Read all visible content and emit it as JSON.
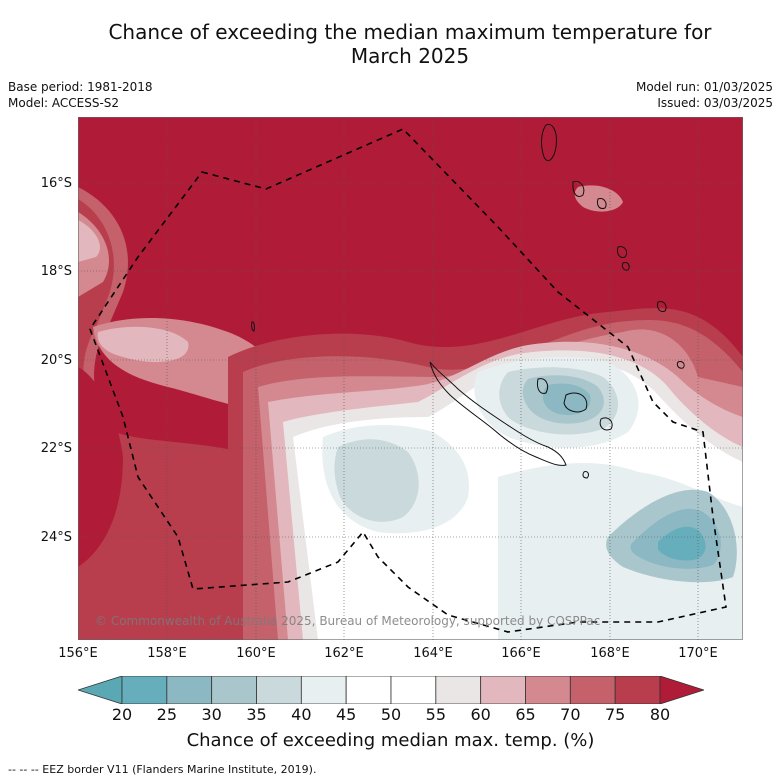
{
  "title_line1": "Chance of exceeding the median maximum temperature for",
  "title_line2": "March 2025",
  "base_period": "Base period: 1981-2018",
  "model": "Model: ACCESS-S2",
  "model_run": "Model run: 01/03/2025",
  "issued": "Issued: 03/03/2025",
  "copyright": "© Commonwealth of Australia 2025, Bureau of Meteorology, supported by COSPPac",
  "lat_labels": [
    "16°S",
    "18°S",
    "20°S",
    "22°S",
    "24°S"
  ],
  "lon_labels": [
    "156°E",
    "158°E",
    "160°E",
    "162°E",
    "164°E",
    "166°E",
    "168°E",
    "170°E"
  ],
  "colorbar": {
    "ticks": [
      "20",
      "25",
      "30",
      "35",
      "40",
      "45",
      "50",
      "55",
      "60",
      "65",
      "70",
      "75",
      "80"
    ],
    "title": "Chance of exceeding median max. temp. (%)",
    "colors": [
      "#5aa8b4",
      "#66aebb",
      "#8bb8c2",
      "#a9c6cc",
      "#c9d9dc",
      "#e8eff0",
      "#ffffff",
      "#ffffff",
      "#ebe6e6",
      "#e2b7bd",
      "#d4888f",
      "#c4616b",
      "#b83e4e",
      "#b01c38"
    ]
  },
  "legend_eez": "--  --  -- EEZ border V11 (Flanders Marine Institute, 2019).",
  "map_colors": {
    "ocean_high": "#b01c38",
    "land_outline": "#111111",
    "eez_line": "#000000"
  }
}
